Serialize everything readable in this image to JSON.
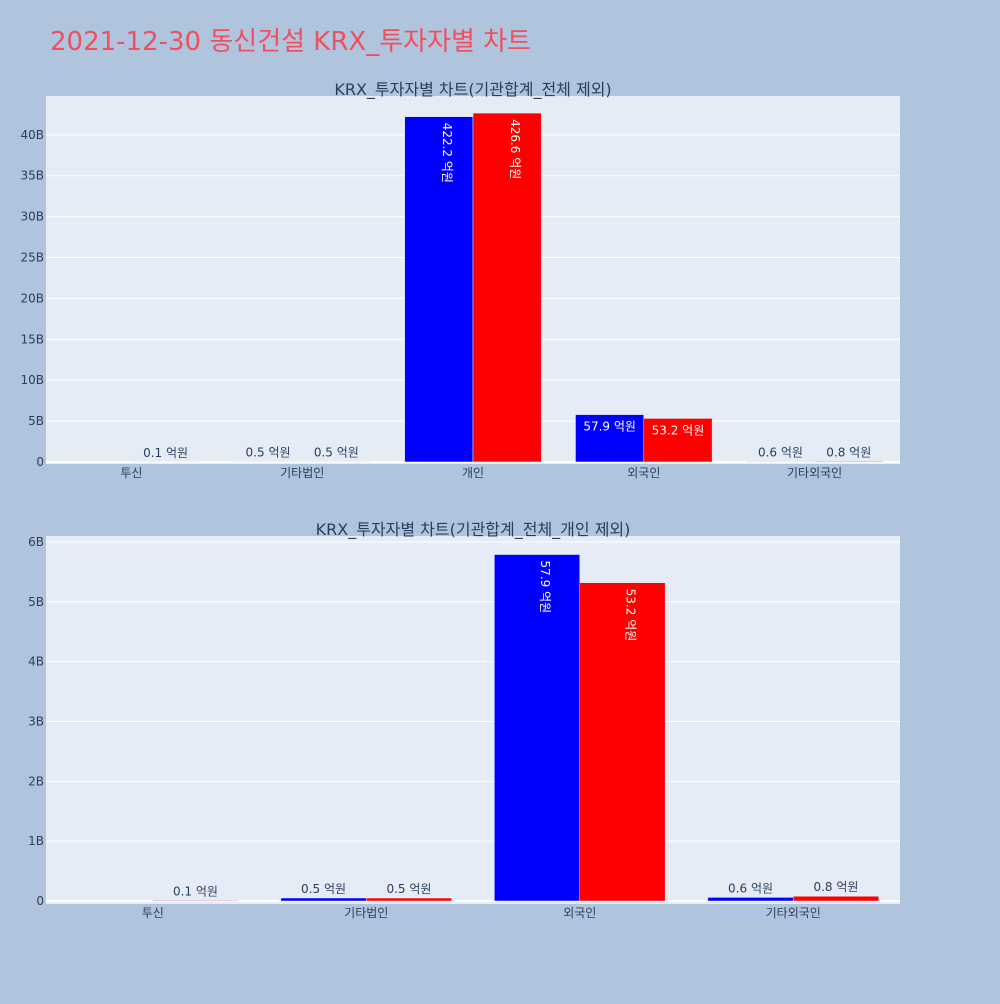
{
  "page_title": "2021-12-30 동신건설 KRX_투자자별 차트",
  "colors": {
    "buy": "#0000ff",
    "sell": "#ff0000",
    "plot_bg": "#e5ecf6",
    "page_bg": "#b0c4de",
    "title": "#ef4f5f"
  },
  "chart_data": [
    {
      "type": "bar",
      "title": "KRX_투자자별 차트(기관합계_전체 제외)",
      "categories": [
        "투신",
        "기타법인",
        "개인",
        "외국인",
        "기타외국인"
      ],
      "series": [
        {
          "color": "#0000ff",
          "values": [
            0,
            0.05,
            42.22,
            5.79,
            0.06
          ],
          "labels": [
            "",
            "0.5 억원",
            "422.2 억원",
            "57.9 억원",
            "0.6 억원"
          ]
        },
        {
          "color": "#ff0000",
          "values": [
            0.01,
            0.05,
            42.66,
            5.32,
            0.08
          ],
          "labels": [
            "0.1 억원",
            "0.5 억원",
            "426.6 억원",
            "53.2 억원",
            "0.8 억원"
          ]
        }
      ],
      "unit": "B",
      "ylim": [
        -0.25,
        44.75
      ],
      "yticks": [
        0,
        5,
        10,
        15,
        20,
        25,
        30,
        35,
        40
      ],
      "ytick_labels": [
        "0",
        "5B",
        "10B",
        "15B",
        "20B",
        "25B",
        "30B",
        "35B",
        "40B"
      ],
      "grid": true,
      "legend": "none"
    },
    {
      "type": "bar",
      "title": "KRX_투자자별 차트(기관합계_전체_개인 제외)",
      "categories": [
        "투신",
        "기타법인",
        "외국인",
        "기타외국인"
      ],
      "series": [
        {
          "color": "#0000ff",
          "values": [
            0,
            0.05,
            5.79,
            0.06
          ],
          "labels": [
            "",
            "0.5 억원",
            "57.9 억원",
            "0.6 억원"
          ]
        },
        {
          "color": "#ff0000",
          "values": [
            0.01,
            0.05,
            5.32,
            0.08
          ],
          "labels": [
            "0.1 억원",
            "0.5 억원",
            "53.2 억원",
            "0.8 억원"
          ]
        }
      ],
      "unit": "B",
      "ylim": [
        -0.05,
        6.1
      ],
      "yticks": [
        0,
        1,
        2,
        3,
        4,
        5,
        6
      ],
      "ytick_labels": [
        "0",
        "1B",
        "2B",
        "3B",
        "4B",
        "5B",
        "6B"
      ],
      "grid": true,
      "legend": "none"
    }
  ]
}
